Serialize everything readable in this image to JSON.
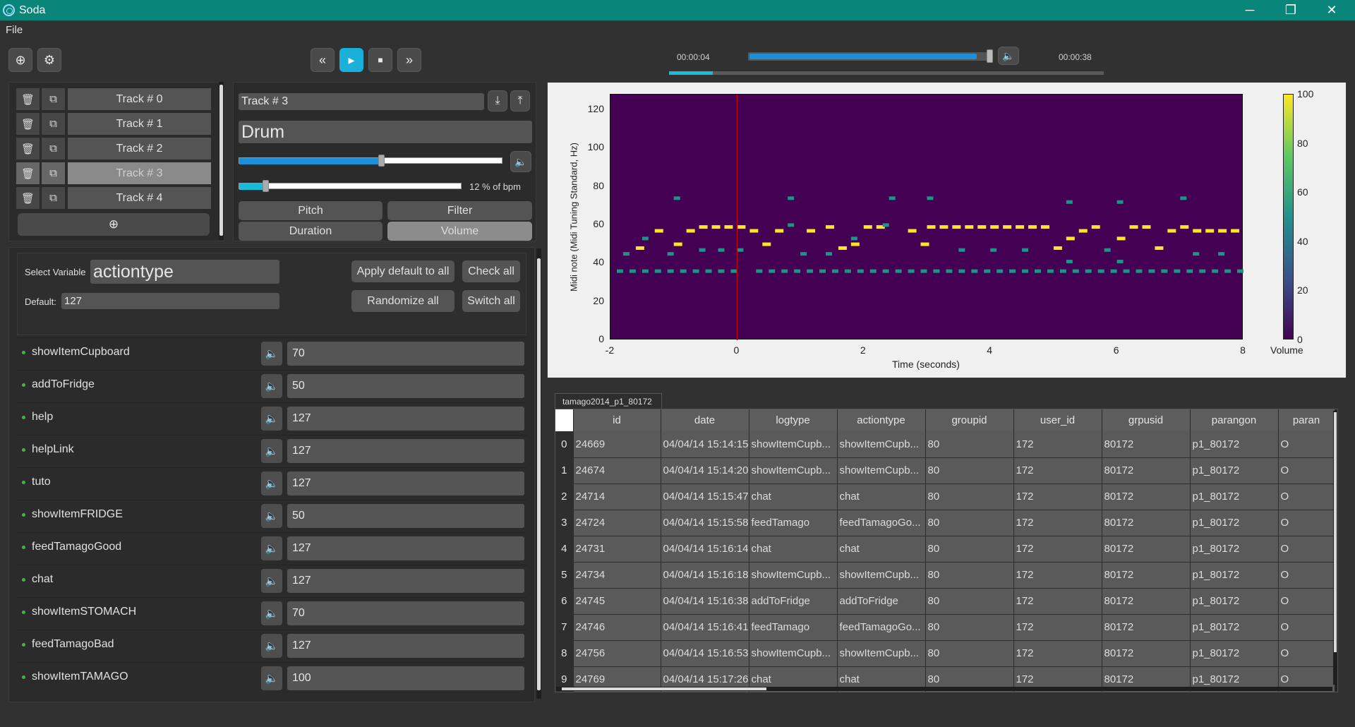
{
  "window": {
    "title": "Soda",
    "minimize": "─",
    "maximize": "❐",
    "close": "✕"
  },
  "menu": {
    "file": "File"
  },
  "toolbar": {
    "add_icon": "⊕",
    "settings_icon": "⚙"
  },
  "transport": {
    "rewind": "«",
    "play": "▸",
    "stop": "■",
    "forward": "»"
  },
  "playback": {
    "current_time": "00:00:04",
    "total_time": "00:00:38",
    "seek_fraction": 0.96,
    "progress_fraction": 0.1
  },
  "tracks": {
    "items": [
      {
        "label": "Track # 0"
      },
      {
        "label": "Track # 1"
      },
      {
        "label": "Track # 2"
      },
      {
        "label": "Track # 3"
      },
      {
        "label": "Track # 4"
      }
    ],
    "selected_index": 3,
    "add_icon": "⊕"
  },
  "editor": {
    "track_name": "Track # 3",
    "instrument": "Drum",
    "volume_fraction": 0.54,
    "bpm_fraction": 0.12,
    "bpm_label": "12 % of bpm",
    "buttons": {
      "pitch": "Pitch",
      "filter": "Filter",
      "duration": "Duration",
      "volume": "Volume"
    }
  },
  "variables": {
    "select_label": "Select Variable",
    "selected": "actiontype",
    "default_label": "Default:",
    "default_value": "127",
    "apply_default": "Apply default to all",
    "check_all": "Check all",
    "randomize_all": "Randomize all",
    "switch_all": "Switch all",
    "rows": [
      {
        "name": "showItemCupboard",
        "value": "70"
      },
      {
        "name": "addToFridge",
        "value": "50"
      },
      {
        "name": "help",
        "value": "127"
      },
      {
        "name": "helpLink",
        "value": "127"
      },
      {
        "name": "tuto",
        "value": "127"
      },
      {
        "name": "showItemFRIDGE",
        "value": "50"
      },
      {
        "name": "feedTamagoGood",
        "value": "127"
      },
      {
        "name": "chat",
        "value": "127"
      },
      {
        "name": "showItemSTOMACH",
        "value": "70"
      },
      {
        "name": "feedTamagoBad",
        "value": "127"
      },
      {
        "name": "showItemTAMAGO",
        "value": "100"
      }
    ]
  },
  "chart_data": {
    "type": "heatmap",
    "xlabel": "Time (seconds)",
    "ylabel": "Midi note (Midi Tuning Standard, Hz)",
    "xlim": [
      -2,
      8
    ],
    "ylim": [
      0,
      128
    ],
    "xticks": [
      "-2",
      "0",
      "2",
      "4",
      "6",
      "8"
    ],
    "yticks": [
      "0",
      "20",
      "40",
      "60",
      "80",
      "100",
      "120"
    ],
    "colorbar_label": "Volume",
    "colorbar_ticks": [
      "0",
      "20",
      "40",
      "60",
      "80",
      "100"
    ],
    "cursor_time": 0,
    "colormap": [
      "#440154",
      "#3b528b",
      "#21918c",
      "#5ec962",
      "#fde725"
    ],
    "notes": [
      {
        "t": -1.9,
        "p": 36,
        "v": 50
      },
      {
        "t": -1.7,
        "p": 36,
        "v": 50
      },
      {
        "t": -1.5,
        "p": 36,
        "v": 50
      },
      {
        "t": -1.3,
        "p": 36,
        "v": 50
      },
      {
        "t": -1.1,
        "p": 36,
        "v": 50
      },
      {
        "t": -0.9,
        "p": 36,
        "v": 50
      },
      {
        "t": -0.7,
        "p": 36,
        "v": 50
      },
      {
        "t": -0.5,
        "p": 36,
        "v": 50
      },
      {
        "t": -0.3,
        "p": 36,
        "v": 50
      },
      {
        "t": -0.1,
        "p": 36,
        "v": 50
      },
      {
        "t": 0.3,
        "p": 36,
        "v": 50
      },
      {
        "t": 0.5,
        "p": 36,
        "v": 50
      },
      {
        "t": 0.7,
        "p": 36,
        "v": 50
      },
      {
        "t": 0.9,
        "p": 36,
        "v": 50
      },
      {
        "t": 1.1,
        "p": 36,
        "v": 50
      },
      {
        "t": 1.3,
        "p": 36,
        "v": 50
      },
      {
        "t": 1.5,
        "p": 36,
        "v": 50
      },
      {
        "t": 1.7,
        "p": 36,
        "v": 50
      },
      {
        "t": 1.9,
        "p": 36,
        "v": 50
      },
      {
        "t": 2.1,
        "p": 36,
        "v": 50
      },
      {
        "t": 2.3,
        "p": 36,
        "v": 50
      },
      {
        "t": 2.5,
        "p": 36,
        "v": 50
      },
      {
        "t": 2.7,
        "p": 36,
        "v": 50
      },
      {
        "t": 2.9,
        "p": 36,
        "v": 50
      },
      {
        "t": 3.1,
        "p": 36,
        "v": 50
      },
      {
        "t": 3.3,
        "p": 36,
        "v": 50
      },
      {
        "t": 3.5,
        "p": 36,
        "v": 50
      },
      {
        "t": 3.7,
        "p": 36,
        "v": 50
      },
      {
        "t": 3.9,
        "p": 36,
        "v": 50
      },
      {
        "t": 4.1,
        "p": 36,
        "v": 50
      },
      {
        "t": 4.3,
        "p": 36,
        "v": 50
      },
      {
        "t": 4.5,
        "p": 36,
        "v": 50
      },
      {
        "t": 4.7,
        "p": 36,
        "v": 50
      },
      {
        "t": 4.9,
        "p": 36,
        "v": 50
      },
      {
        "t": 5.1,
        "p": 36,
        "v": 50
      },
      {
        "t": 5.3,
        "p": 36,
        "v": 50
      },
      {
        "t": 5.5,
        "p": 36,
        "v": 50
      },
      {
        "t": 5.7,
        "p": 36,
        "v": 50
      },
      {
        "t": 5.9,
        "p": 36,
        "v": 50
      },
      {
        "t": 6.1,
        "p": 36,
        "v": 50
      },
      {
        "t": 6.3,
        "p": 36,
        "v": 50
      },
      {
        "t": 6.5,
        "p": 36,
        "v": 50
      },
      {
        "t": 6.7,
        "p": 36,
        "v": 50
      },
      {
        "t": 6.9,
        "p": 36,
        "v": 50
      },
      {
        "t": 7.1,
        "p": 36,
        "v": 50
      },
      {
        "t": 7.3,
        "p": 36,
        "v": 50
      },
      {
        "t": 7.5,
        "p": 36,
        "v": 50
      },
      {
        "t": 7.7,
        "p": 36,
        "v": 50
      },
      {
        "t": 7.9,
        "p": 36,
        "v": 50
      },
      {
        "t": -1.8,
        "p": 45,
        "v": 45
      },
      {
        "t": -1.6,
        "p": 48,
        "v": 100
      },
      {
        "t": -1.5,
        "p": 53,
        "v": 45
      },
      {
        "t": -1.3,
        "p": 57,
        "v": 100
      },
      {
        "t": -1.1,
        "p": 45,
        "v": 45
      },
      {
        "t": -1.0,
        "p": 50,
        "v": 100
      },
      {
        "t": -1.0,
        "p": 74,
        "v": 45
      },
      {
        "t": -0.8,
        "p": 57,
        "v": 100
      },
      {
        "t": -0.6,
        "p": 59,
        "v": 100
      },
      {
        "t": -0.4,
        "p": 59,
        "v": 100
      },
      {
        "t": -0.2,
        "p": 59,
        "v": 100
      },
      {
        "t": 0.0,
        "p": 59,
        "v": 100
      },
      {
        "t": -0.6,
        "p": 47,
        "v": 45
      },
      {
        "t": -0.3,
        "p": 47,
        "v": 45
      },
      {
        "t": 0.0,
        "p": 47,
        "v": 45
      },
      {
        "t": 0.2,
        "p": 57,
        "v": 100
      },
      {
        "t": 0.4,
        "p": 50,
        "v": 100
      },
      {
        "t": 0.6,
        "p": 57,
        "v": 100
      },
      {
        "t": 0.8,
        "p": 60,
        "v": 45
      },
      {
        "t": 0.8,
        "p": 74,
        "v": 45
      },
      {
        "t": 1.0,
        "p": 45,
        "v": 45
      },
      {
        "t": 1.1,
        "p": 57,
        "v": 100
      },
      {
        "t": 1.4,
        "p": 59,
        "v": 100
      },
      {
        "t": 1.4,
        "p": 45,
        "v": 45
      },
      {
        "t": 1.6,
        "p": 48,
        "v": 100
      },
      {
        "t": 1.8,
        "p": 53,
        "v": 45
      },
      {
        "t": 1.8,
        "p": 50,
        "v": 100
      },
      {
        "t": 2.0,
        "p": 59,
        "v": 100
      },
      {
        "t": 2.2,
        "p": 59,
        "v": 100
      },
      {
        "t": 2.3,
        "p": 60,
        "v": 45
      },
      {
        "t": 2.4,
        "p": 74,
        "v": 45
      },
      {
        "t": 2.7,
        "p": 57,
        "v": 100
      },
      {
        "t": 2.9,
        "p": 50,
        "v": 100
      },
      {
        "t": 3.0,
        "p": 59,
        "v": 100
      },
      {
        "t": 3.2,
        "p": 59,
        "v": 100
      },
      {
        "t": 3.4,
        "p": 59,
        "v": 100
      },
      {
        "t": 3.6,
        "p": 59,
        "v": 100
      },
      {
        "t": 3.8,
        "p": 59,
        "v": 100
      },
      {
        "t": 4.0,
        "p": 59,
        "v": 100
      },
      {
        "t": 4.2,
        "p": 59,
        "v": 100
      },
      {
        "t": 4.4,
        "p": 59,
        "v": 100
      },
      {
        "t": 4.6,
        "p": 59,
        "v": 100
      },
      {
        "t": 4.8,
        "p": 59,
        "v": 100
      },
      {
        "t": 3.0,
        "p": 74,
        "v": 45
      },
      {
        "t": 3.5,
        "p": 47,
        "v": 45
      },
      {
        "t": 4.0,
        "p": 47,
        "v": 45
      },
      {
        "t": 4.5,
        "p": 47,
        "v": 45
      },
      {
        "t": 5.0,
        "p": 48,
        "v": 100
      },
      {
        "t": 5.2,
        "p": 53,
        "v": 100
      },
      {
        "t": 5.2,
        "p": 41,
        "v": 45
      },
      {
        "t": 5.2,
        "p": 72,
        "v": 45
      },
      {
        "t": 5.4,
        "p": 57,
        "v": 100
      },
      {
        "t": 5.6,
        "p": 59,
        "v": 100
      },
      {
        "t": 5.8,
        "p": 47,
        "v": 45
      },
      {
        "t": 6.0,
        "p": 53,
        "v": 100
      },
      {
        "t": 6.0,
        "p": 72,
        "v": 45
      },
      {
        "t": 6.0,
        "p": 41,
        "v": 45
      },
      {
        "t": 6.2,
        "p": 59,
        "v": 100
      },
      {
        "t": 6.4,
        "p": 59,
        "v": 100
      },
      {
        "t": 6.6,
        "p": 48,
        "v": 100
      },
      {
        "t": 6.8,
        "p": 57,
        "v": 100
      },
      {
        "t": 7.0,
        "p": 59,
        "v": 100
      },
      {
        "t": 7.0,
        "p": 74,
        "v": 45
      },
      {
        "t": 7.2,
        "p": 57,
        "v": 100
      },
      {
        "t": 7.4,
        "p": 57,
        "v": 100
      },
      {
        "t": 7.6,
        "p": 57,
        "v": 100
      },
      {
        "t": 7.8,
        "p": 57,
        "v": 100
      },
      {
        "t": 7.2,
        "p": 45,
        "v": 45
      },
      {
        "t": 7.6,
        "p": 45,
        "v": 45
      }
    ]
  },
  "table": {
    "tab": "tamago2014_p1_80172",
    "columns": [
      "id",
      "date",
      "logtype",
      "actiontype",
      "groupid",
      "user_id",
      "grpusid",
      "parangon",
      "paran"
    ],
    "rows": [
      {
        "idx": "0",
        "cells": [
          "24669",
          "04/04/14 15:14:15",
          "showItemCupb...",
          "showItemCupb...",
          "80",
          "172",
          "80172",
          "p1_80172",
          "O"
        ]
      },
      {
        "idx": "1",
        "cells": [
          "24674",
          "04/04/14 15:14:20",
          "showItemCupb...",
          "showItemCupb...",
          "80",
          "172",
          "80172",
          "p1_80172",
          "O"
        ]
      },
      {
        "idx": "2",
        "cells": [
          "24714",
          "04/04/14 15:15:47",
          "chat",
          "chat",
          "80",
          "172",
          "80172",
          "p1_80172",
          "O"
        ]
      },
      {
        "idx": "3",
        "cells": [
          "24724",
          "04/04/14 15:15:58",
          "feedTamago",
          "feedTamagoGo...",
          "80",
          "172",
          "80172",
          "p1_80172",
          "O"
        ]
      },
      {
        "idx": "4",
        "cells": [
          "24731",
          "04/04/14 15:16:14",
          "chat",
          "chat",
          "80",
          "172",
          "80172",
          "p1_80172",
          "O"
        ]
      },
      {
        "idx": "5",
        "cells": [
          "24734",
          "04/04/14 15:16:18",
          "showItemCupb...",
          "showItemCupb...",
          "80",
          "172",
          "80172",
          "p1_80172",
          "O"
        ]
      },
      {
        "idx": "6",
        "cells": [
          "24745",
          "04/04/14 15:16:38",
          "addToFridge",
          "addToFridge",
          "80",
          "172",
          "80172",
          "p1_80172",
          "O"
        ]
      },
      {
        "idx": "7",
        "cells": [
          "24746",
          "04/04/14 15:16:41",
          "feedTamago",
          "feedTamagoGo...",
          "80",
          "172",
          "80172",
          "p1_80172",
          "O"
        ]
      },
      {
        "idx": "8",
        "cells": [
          "24756",
          "04/04/14 15:16:53",
          "showItemCupb...",
          "showItemCupb...",
          "80",
          "172",
          "80172",
          "p1_80172",
          "O"
        ]
      },
      {
        "idx": "9",
        "cells": [
          "24769",
          "04/04/14 15:17:26",
          "chat",
          "chat",
          "80",
          "172",
          "80172",
          "p1_80172",
          "O"
        ]
      }
    ]
  }
}
